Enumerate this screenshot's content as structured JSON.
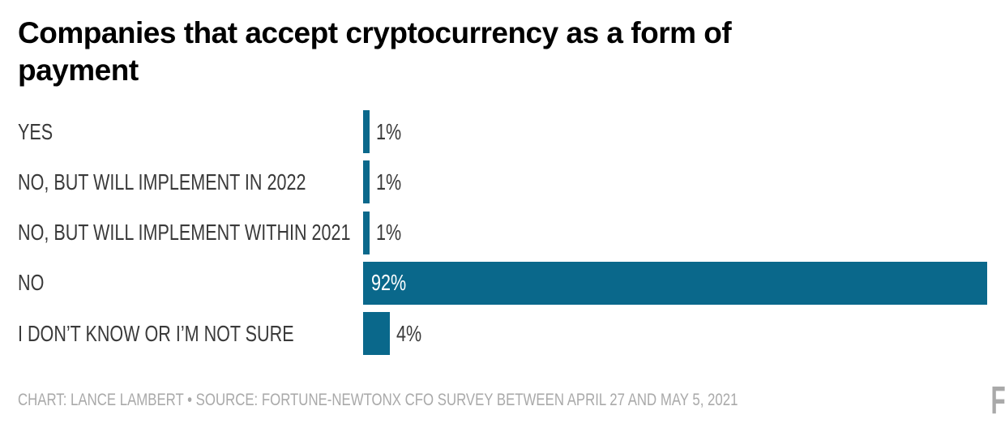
{
  "title": {
    "full": "Companies that accept cryptocurrency as a form of payment"
  },
  "chart_data": {
    "type": "bar",
    "orientation": "horizontal",
    "title": "Companies that accept cryptocurrency as a form of payment",
    "title_lines": [
      "Companies that accept cryptocurrency as a form of",
      "payment"
    ],
    "categories": [
      "YES",
      "NO, BUT WILL IMPLEMENT IN 2022",
      "NO, BUT WILL IMPLEMENT WITHIN 2021",
      "NO",
      "I DON’T KNOW OR I’M NOT SURE"
    ],
    "values": [
      1,
      1,
      1,
      92,
      4
    ],
    "unit": "%",
    "value_labels": [
      "1%",
      "1%",
      "1%",
      "92%",
      "4%"
    ],
    "value_positions": [
      "outside",
      "outside",
      "outside",
      "inside",
      "outside"
    ],
    "xlim": [
      0,
      92
    ],
    "grid": false,
    "legend": false,
    "bar_color": "#0A688B"
  },
  "footer": {
    "credit": "CHART: LANCE LAMBERT • SOURCE: FORTUNE-NEWTONX CFO SURVEY BETWEEN APRIL 27 AND MAY 5, 2021",
    "brand": "FORTUNE"
  },
  "colors": {
    "bar": "#0A688B",
    "title": "#000000",
    "label": "#3A3A3A",
    "muted": "#A9A9A9",
    "background": "#FFFFFF"
  }
}
